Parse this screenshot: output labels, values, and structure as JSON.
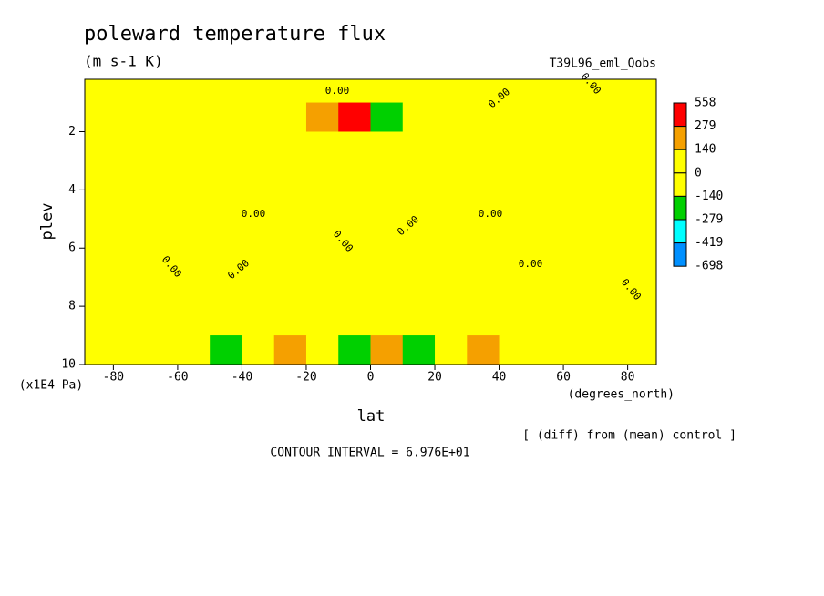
{
  "chart_data": {
    "type": "contour",
    "title": "poleward temperature flux",
    "subtitle": "(m s-1 K)",
    "run_label": "T39L96_eml_Qobs",
    "x_label": "lat",
    "x_units": "(degrees_north)",
    "y_label": "plev",
    "y_units": "(x1E4 Pa)",
    "note": "[ (diff) from (mean) control ]",
    "footer": "CONTOUR INTERVAL = 6.976E+01",
    "contour_label": "0.00",
    "xlim": [
      -88.9,
      88.9
    ],
    "ylim": [
      10,
      0.2
    ],
    "xticks": [
      -80,
      -60,
      -40,
      -20,
      0,
      20,
      40,
      60,
      80
    ],
    "yticks": [
      2,
      4,
      6,
      8,
      10
    ],
    "x": [
      -85,
      -75,
      -65,
      -55,
      -45,
      -35,
      -25,
      -15,
      -5,
      5,
      15,
      25,
      35,
      45,
      55,
      65,
      75,
      85
    ],
    "y": [
      0.5,
      1.5,
      2.5,
      3.5,
      4.5,
      5.5,
      6.5,
      7.5,
      8.5,
      9.5
    ],
    "z": [
      [
        50,
        30,
        -30,
        -50,
        -40,
        -30,
        -20,
        20,
        30,
        20,
        10,
        -20,
        -30,
        20,
        30,
        30,
        -20,
        30
      ],
      [
        40,
        -60,
        -60,
        40,
        -40,
        -50,
        -30,
        150,
        300,
        -250,
        -60,
        -40,
        -30,
        -50,
        -50,
        40,
        40,
        -30
      ],
      [
        -60,
        -70,
        -70,
        -60,
        30,
        40,
        -40,
        -50,
        -30,
        50,
        60,
        40,
        -40,
        -50,
        40,
        50,
        50,
        -30
      ],
      [
        -60,
        -60,
        -60,
        -40,
        30,
        40,
        -40,
        -60,
        20,
        40,
        60,
        -40,
        -50,
        -40,
        40,
        50,
        40,
        -30
      ],
      [
        -60,
        -60,
        -60,
        -50,
        40,
        40,
        -40,
        -40,
        -50,
        -50,
        30,
        40,
        -40,
        -50,
        -40,
        40,
        40,
        -30
      ],
      [
        40,
        -60,
        -60,
        -40,
        -50,
        40,
        30,
        -30,
        40,
        40,
        -30,
        -40,
        40,
        40,
        -40,
        -50,
        -50,
        -30
      ],
      [
        40,
        -60,
        -50,
        40,
        -50,
        -40,
        40,
        -30,
        40,
        40,
        -30,
        40,
        40,
        40,
        -40,
        -50,
        -50,
        30
      ],
      [
        40,
        -50,
        -40,
        40,
        -50,
        -40,
        40,
        40,
        40,
        30,
        40,
        40,
        40,
        40,
        -40,
        -50,
        -50,
        30
      ],
      [
        30,
        40,
        40,
        -50,
        -60,
        -40,
        40,
        -40,
        -30,
        -40,
        -40,
        40,
        -40,
        -50,
        40,
        40,
        40,
        30
      ],
      [
        30,
        40,
        40,
        -60,
        -150,
        -60,
        200,
        -40,
        -200,
        200,
        -150,
        -60,
        150,
        40,
        40,
        40,
        40,
        30
      ]
    ],
    "levels": [
      558,
      279,
      140,
      0,
      -140,
      -279,
      -419,
      -698
    ],
    "colors": [
      "#ff0000",
      "#f5a000",
      "#ffff00",
      "#ffff00",
      "#00d000",
      "#00ffff",
      "#0090ff"
    ]
  }
}
